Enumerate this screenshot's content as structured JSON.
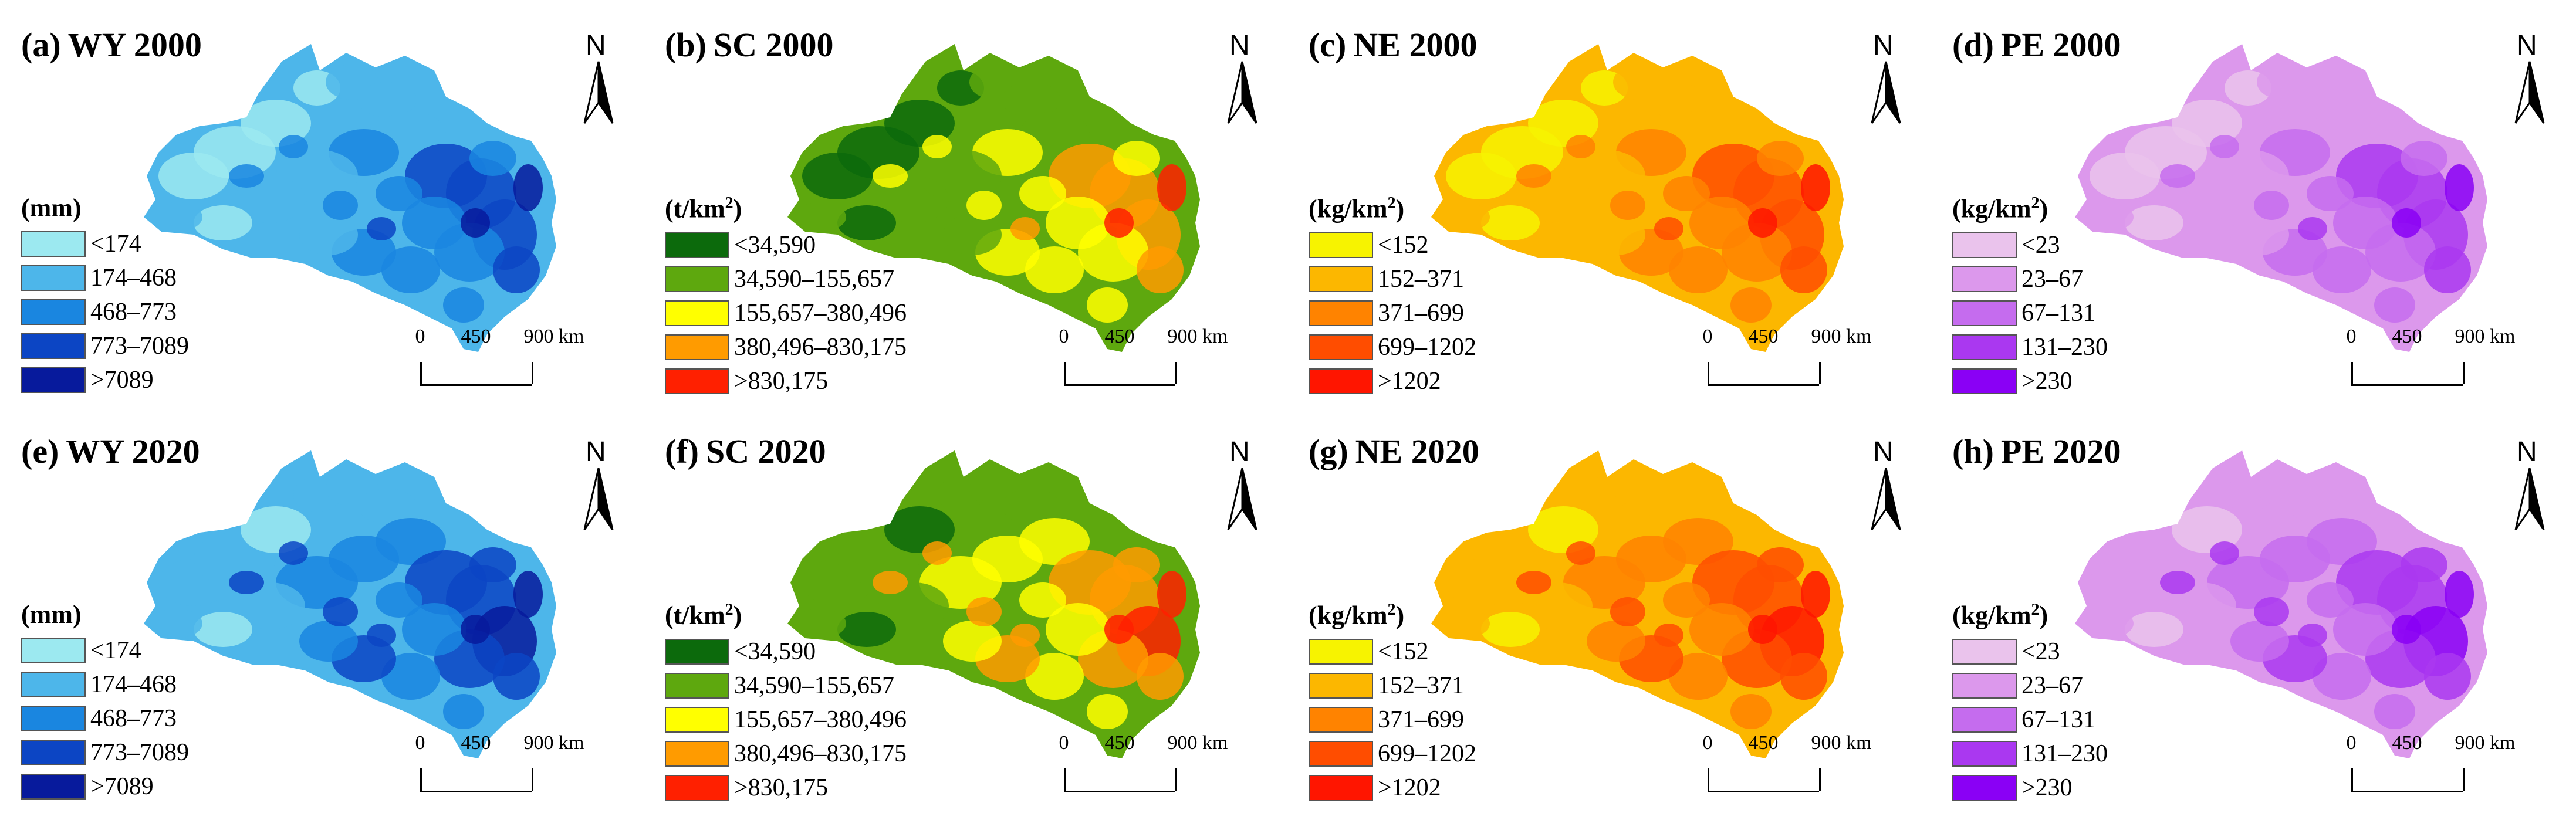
{
  "panels": [
    {
      "label": "(a)",
      "title": "WY 2000",
      "unit": "(mm)",
      "unit_sup": "",
      "palette": [
        "#9ce9f0",
        "#4db6ea",
        "#1a86e0",
        "#0c45c4",
        "#071a9c"
      ],
      "legend": [
        "<174",
        "174–468",
        "468–773",
        "773–7089",
        ">7089"
      ]
    },
    {
      "label": "(b)",
      "title": "SC 2000",
      "unit": "(t/km",
      "unit_sup": "2",
      "palette": [
        "#0c6a0c",
        "#5ea80e",
        "#ffff00",
        "#ff9b00",
        "#ff2000"
      ],
      "legend": [
        "<34,590",
        "34,590–155,657",
        "155,657–380,496",
        "380,496–830,175",
        ">830,175"
      ]
    },
    {
      "label": "(c)",
      "title": "NE 2000",
      "unit": "(kg/km",
      "unit_sup": "2",
      "palette": [
        "#f7f300",
        "#fcb700",
        "#ff8300",
        "#ff4d00",
        "#ff1500"
      ],
      "legend": [
        "<152",
        "152–371",
        "371–699",
        "699–1202",
        ">1202"
      ]
    },
    {
      "label": "(d)",
      "title": "PE 2000",
      "unit": "(kg/km",
      "unit_sup": "2",
      "palette": [
        "#eac3ec",
        "#dc98ec",
        "#c56cee",
        "#aa38f0",
        "#8a00f5"
      ],
      "legend": [
        "<23",
        "23–67",
        "67–131",
        "131–230",
        ">230"
      ]
    },
    {
      "label": "(e)",
      "title": "WY 2020",
      "unit": "(mm)",
      "unit_sup": "",
      "palette": [
        "#9ce9f0",
        "#4db6ea",
        "#1a86e0",
        "#0c45c4",
        "#071a9c"
      ],
      "legend": [
        "<174",
        "174–468",
        "468–773",
        "773–7089",
        ">7089"
      ]
    },
    {
      "label": "(f)",
      "title": "SC 2020",
      "unit": "(t/km",
      "unit_sup": "2",
      "palette": [
        "#0c6a0c",
        "#5ea80e",
        "#ffff00",
        "#ff9b00",
        "#ff2000"
      ],
      "legend": [
        "<34,590",
        "34,590–155,657",
        "155,657–380,496",
        "380,496–830,175",
        ">830,175"
      ]
    },
    {
      "label": "(g)",
      "title": "NE 2020",
      "unit": "(kg/km",
      "unit_sup": "2",
      "palette": [
        "#f7f300",
        "#fcb700",
        "#ff8300",
        "#ff4d00",
        "#ff1500"
      ],
      "legend": [
        "<152",
        "152–371",
        "371–699",
        "699–1202",
        ">1202"
      ]
    },
    {
      "label": "(h)",
      "title": "PE 2020",
      "unit": "(kg/km",
      "unit_sup": "2",
      "palette": [
        "#eac3ec",
        "#dc98ec",
        "#c56cee",
        "#aa38f0",
        "#8a00f5"
      ],
      "legend": [
        "<23",
        "23–67",
        "67–131",
        "131–230",
        ">230"
      ]
    }
  ],
  "north_label": "N",
  "scale_bar": {
    "ticks": [
      "0",
      "450",
      "900 km"
    ]
  }
}
